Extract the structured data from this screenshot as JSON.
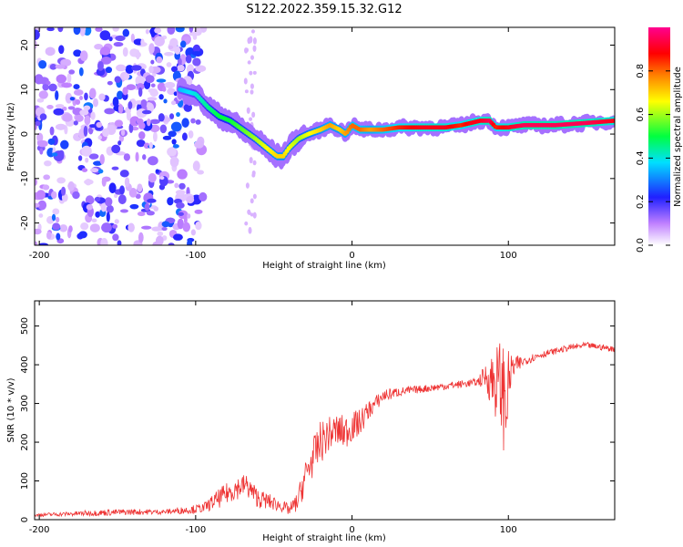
{
  "figure": {
    "title": "S122.2022.359.15.32.G12"
  },
  "chart_data": [
    {
      "type": "heatmap",
      "xlabel": "Height of straight line (km)",
      "ylabel": "Frequency (Hz)",
      "xlim": [
        -203,
        168
      ],
      "ylim": [
        -25,
        24
      ],
      "x_ticks": [
        -200,
        -100,
        0,
        100
      ],
      "y_ticks": [
        -20,
        -10,
        0,
        10,
        20
      ],
      "grid": false,
      "colorbar": {
        "label": "Normalized spectral amplitude",
        "range": [
          0,
          1
        ],
        "ticks": [
          0.0,
          0.2,
          0.4,
          0.6,
          0.8
        ],
        "colormap": "rainbow: white, violet, blue, cyan, green, yellow, orange, red, magenta"
      },
      "ridge": {
        "x": [
          -110,
          -100,
          -92,
          -85,
          -78,
          -70,
          -62,
          -55,
          -48,
          -44,
          -40,
          -34,
          -28,
          -20,
          -14,
          -8,
          -4,
          0,
          5,
          12,
          20,
          30,
          45,
          60,
          70,
          76,
          82,
          88,
          92,
          100,
          110,
          130,
          150,
          168
        ],
        "y": [
          10,
          9,
          6,
          4,
          3,
          1,
          -1,
          -3,
          -5,
          -5,
          -3,
          -1,
          0,
          1,
          2,
          1,
          0,
          2,
          1,
          1,
          1,
          1.5,
          1.5,
          1.5,
          2,
          2.5,
          3,
          3,
          1.5,
          1.5,
          2,
          2,
          2.5,
          3
        ],
        "amplitude": [
          0.35,
          0.4,
          0.45,
          0.5,
          0.5,
          0.55,
          0.6,
          0.65,
          0.7,
          0.7,
          0.65,
          0.6,
          0.65,
          0.7,
          0.75,
          0.7,
          0.75,
          0.8,
          0.8,
          0.75,
          0.8,
          0.85,
          0.9,
          0.9,
          0.85,
          0.9,
          0.9,
          0.95,
          0.85,
          0.9,
          0.95,
          0.95,
          0.95,
          0.9
        ]
      },
      "noise_region": {
        "x_range": [
          -203,
          -95
        ],
        "y_range": [
          -25,
          24
        ]
      }
    },
    {
      "type": "line",
      "xlabel": "Height of straight line (km)",
      "ylabel": "SNR (10 * v/v)",
      "xlim": [
        -203,
        168
      ],
      "ylim": [
        0,
        565
      ],
      "x_ticks": [
        -200,
        -100,
        0,
        100
      ],
      "y_ticks": [
        0,
        100,
        200,
        300,
        400,
        500
      ],
      "grid": false,
      "series": [
        {
          "color": "#ee3333",
          "x": [
            -203,
            -180,
            -160,
            -140,
            -120,
            -105,
            -95,
            -85,
            -75,
            -68,
            -60,
            -52,
            -45,
            -40,
            -35,
            -30,
            -25,
            -20,
            -15,
            -10,
            -5,
            0,
            5,
            10,
            15,
            20,
            30,
            40,
            50,
            60,
            70,
            80,
            85,
            90,
            95,
            98,
            102,
            110,
            120,
            130,
            140,
            150,
            160,
            168
          ],
          "y": [
            12,
            15,
            18,
            20,
            20,
            25,
            30,
            55,
            80,
            90,
            55,
            45,
            35,
            25,
            45,
            110,
            160,
            200,
            220,
            230,
            225,
            240,
            250,
            280,
            300,
            320,
            330,
            335,
            340,
            345,
            350,
            355,
            370,
            360,
            350,
            300,
            390,
            410,
            425,
            435,
            445,
            450,
            445,
            440
          ],
          "jitter": [
            4,
            6,
            8,
            8,
            6,
            10,
            12,
            25,
            30,
            30,
            25,
            20,
            15,
            15,
            25,
            45,
            50,
            55,
            45,
            45,
            45,
            40,
            35,
            25,
            20,
            18,
            12,
            10,
            10,
            10,
            10,
            10,
            30,
            80,
            120,
            150,
            35,
            12,
            10,
            8,
            8,
            8,
            8,
            8
          ]
        }
      ]
    }
  ]
}
